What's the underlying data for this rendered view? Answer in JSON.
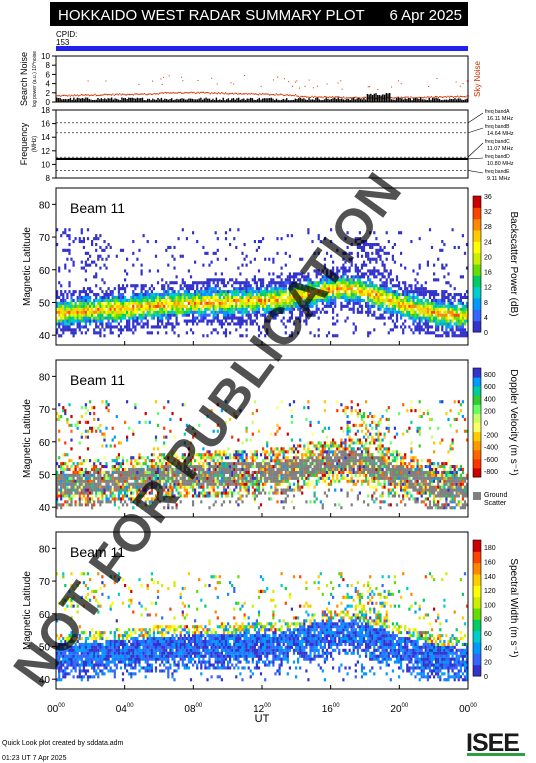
{
  "header": {
    "title": "HOKKAIDO WEST RADAR SUMMARY PLOT",
    "date": "6 Apr 2025",
    "cpid_label": "CPID:",
    "cpid_value": "153"
  },
  "colors": {
    "header_bg": "#000000",
    "cpid_bar": "#2222ee",
    "sky_noise": "#d03000",
    "search_noise": "#000000",
    "ground_scatter": "#808080"
  },
  "noise_panel": {
    "ylabel": "Search Noise",
    "ylabel_sub": "log power (a.u.) 10^noise",
    "right_label": "Sky Noise",
    "yticks": [
      "0",
      "2",
      "4",
      "6",
      "8",
      "10"
    ],
    "ylim": [
      0,
      10
    ]
  },
  "freq_panel": {
    "ylabel": "Frequency",
    "ylabel_unit": "(MHz)",
    "yticks": [
      "8",
      "10",
      "12",
      "14",
      "16",
      "18"
    ],
    "ylim": [
      8,
      18
    ],
    "bands": [
      {
        "name": "freq bandA",
        "label": "16.11 MHz",
        "value": 16.11
      },
      {
        "name": "freq bandB",
        "label": "14.64 MHz",
        "value": 14.64
      },
      {
        "name": "freq bandC",
        "label": "11.07 MHz",
        "value": 11.07
      },
      {
        "name": "freq bandD",
        "label": "10.80 MHz",
        "value": 10.8
      },
      {
        "name": "freq bandE",
        "label": "9.11 MHz",
        "value": 9.11
      }
    ],
    "operating_mhz": 10.8
  },
  "chart_data": [
    {
      "type": "heatmap",
      "beam_label": "Beam 11",
      "ylabel": "Magnetic Latitude",
      "ylim": [
        37,
        85
      ],
      "yticks": [
        "40",
        "50",
        "60",
        "70",
        "80"
      ],
      "colorbar_label": "Backscatter Power (dB)",
      "colorbar_ticks": [
        "0",
        "4",
        "8",
        "12",
        "16",
        "20",
        "24",
        "28",
        "32",
        "36"
      ],
      "colorbar_range": [
        0,
        36
      ]
    },
    {
      "type": "heatmap",
      "beam_label": "Beam 11",
      "ylabel": "Magnetic Latitude",
      "ylim": [
        37,
        85
      ],
      "yticks": [
        "40",
        "50",
        "60",
        "70",
        "80"
      ],
      "colorbar_label": "Doppler Velocity (m s⁻¹)",
      "colorbar_ticks": [
        "-800",
        "-600",
        "-400",
        "-200",
        "0",
        "200",
        "400",
        "600",
        "800"
      ],
      "colorbar_range": [
        -900,
        900
      ],
      "extra_legend": "Ground Scatter"
    },
    {
      "type": "heatmap",
      "beam_label": "Beam 11",
      "ylabel": "Magnetic Latitude",
      "ylim": [
        37,
        85
      ],
      "yticks": [
        "40",
        "50",
        "60",
        "70",
        "80"
      ],
      "colorbar_label": "Spectral Width (m s⁻¹)",
      "colorbar_ticks": [
        "0",
        "20",
        "40",
        "60",
        "80",
        "100",
        "120",
        "140",
        "160",
        "180"
      ],
      "colorbar_range": [
        0,
        190
      ]
    }
  ],
  "time_axis": {
    "label": "UT",
    "range_hours": [
      0,
      24
    ],
    "ticks": [
      {
        "h": 0,
        "label": "00",
        "sup": "00"
      },
      {
        "h": 4,
        "label": "04",
        "sup": "00"
      },
      {
        "h": 8,
        "label": "08",
        "sup": "00"
      },
      {
        "h": 12,
        "label": "12",
        "sup": "00"
      },
      {
        "h": 16,
        "label": "16",
        "sup": "00"
      },
      {
        "h": 20,
        "label": "20",
        "sup": "00"
      },
      {
        "h": 24,
        "label": "00",
        "sup": "00"
      }
    ]
  },
  "watermark": "NOT FOR PUBLICATION",
  "footer": {
    "credit": "Quick Look plot created by sddata.adm",
    "timestamp": "01:23 UT 7 Apr 2025",
    "logo": "ISEE"
  }
}
